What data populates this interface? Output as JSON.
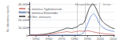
{
  "chart_data": {
    "type": "line",
    "title": "",
    "xlabel": "",
    "ylabel": "No. laboratory reports",
    "x": [
      1945,
      1946,
      1947,
      1948,
      1949,
      1950,
      1951,
      1952,
      1953,
      1954,
      1955,
      1956,
      1957,
      1958,
      1959,
      1960,
      1961,
      1962,
      1963,
      1964,
      1965,
      1966,
      1967,
      1968,
      1969,
      1970,
      1971,
      1972,
      1973,
      1974,
      1975,
      1976,
      1977,
      1978,
      1979,
      1980,
      1981,
      1982,
      1983,
      1984,
      1985,
      1986,
      1987,
      1988,
      1989,
      1990,
      1991,
      1992,
      1993,
      1994,
      1995,
      1996,
      1997,
      1998,
      1999,
      2000,
      2001,
      2002,
      2003,
      2004,
      2005,
      2006,
      2007,
      2008,
      2009,
      2010,
      2011
    ],
    "series": [
      {
        "name": "S. enterica Typhimurium",
        "color": "#cc6666",
        "values": [
          150,
          160,
          180,
          200,
          220,
          250,
          280,
          310,
          350,
          400,
          450,
          520,
          600,
          750,
          900,
          1050,
          1200,
          1500,
          1800,
          2000,
          2200,
          2500,
          2800,
          3100,
          3300,
          3600,
          3800,
          4000,
          4300,
          4500,
          4300,
          4000,
          3800,
          3600,
          4000,
          4300,
          4500,
          4700,
          5000,
          5500,
          5200,
          4800,
          5000,
          5300,
          5500,
          5800,
          5500,
          5200,
          4800,
          4500,
          4000,
          3700,
          3400,
          3100,
          2800,
          2500,
          2200,
          2000,
          1800,
          1600,
          1500,
          1400,
          1300,
          1200,
          1050,
          980,
          900
        ]
      },
      {
        "name": "S. enterica Enteritidis",
        "color": "#6688cc",
        "values": [
          30,
          32,
          35,
          38,
          40,
          45,
          50,
          55,
          60,
          65,
          70,
          80,
          90,
          100,
          110,
          120,
          130,
          145,
          160,
          175,
          190,
          205,
          220,
          235,
          248,
          260,
          272,
          284,
          295,
          305,
          310,
          318,
          325,
          332,
          340,
          355,
          370,
          390,
          480,
          750,
          1200,
          2000,
          3500,
          6000,
          10000,
          14000,
          18000,
          22000,
          25000,
          26500,
          27500,
          25500,
          23000,
          19500,
          15500,
          13500,
          11500,
          9800,
          8800,
          7800,
          7200,
          6700,
          6200,
          5700,
          5200,
          4800,
          4600
        ]
      },
      {
        "name": "All Ser. serovars",
        "color": "#333333",
        "values": [
          300,
          340,
          390,
          440,
          490,
          560,
          630,
          710,
          800,
          900,
          1000,
          1150,
          1350,
          1650,
          1950,
          2250,
          2550,
          2900,
          3300,
          3700,
          4100,
          4600,
          5100,
          5600,
          6100,
          6700,
          7300,
          7900,
          8600,
          9200,
          9000,
          8800,
          8600,
          8300,
          9000,
          9600,
          10200,
          10800,
          12000,
          13500,
          14000,
          14000,
          15500,
          18500,
          23000,
          28000,
          33000,
          36000,
          38500,
          40000,
          39000,
          36000,
          33000,
          29000,
          25000,
          22000,
          19000,
          17000,
          15500,
          14000,
          13000,
          12000,
          11000,
          10200,
          9200,
          8700,
          8200
        ]
      }
    ],
    "vlines": [
      1982,
      1988,
      1999
    ],
    "annotations": [
      {
        "text": "Emergence",
        "x": 1985,
        "y": 41000
      },
      {
        "text": "Epidemic",
        "x": 1993.5,
        "y": 41000
      },
      {
        "text": "Decline",
        "x": 2005,
        "y": 41000
      }
    ],
    "xlim": [
      1945,
      2011
    ],
    "xticks": [
      1950,
      1960,
      1970,
      1980,
      1990,
      2000,
      2010
    ],
    "ylim": [
      0,
      42000
    ],
    "yticks": [
      0,
      {
        "value": 10000,
        "label": "10,000"
      },
      {
        "value": 20000,
        "label": "20,000"
      },
      {
        "value": 30000,
        "label": "30,000"
      },
      {
        "value": 40000,
        "label": "40,000"
      }
    ],
    "grid": true,
    "legend": "upper left"
  }
}
